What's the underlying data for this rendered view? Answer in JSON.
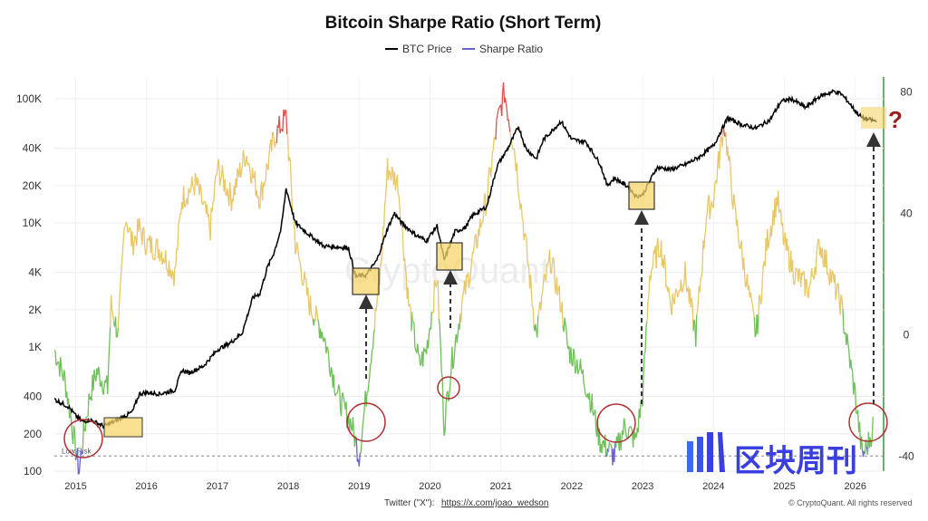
{
  "chart_data": {
    "type": "line",
    "title": "Bitcoin Sharpe Ratio (Short Term)",
    "legend": [
      "BTC Price",
      "Sharpe Ratio"
    ],
    "x_ticks": [
      "2015",
      "2016",
      "2017",
      "2018",
      "2019",
      "2020",
      "2021",
      "2022",
      "2023",
      "2024",
      "2025",
      "2026"
    ],
    "y_left_ticks": [
      "100K",
      "40K",
      "20K",
      "10K",
      "4K",
      "2K",
      "1K",
      "400",
      "200",
      "100"
    ],
    "y_right_ticks": [
      "80",
      "40",
      "0",
      "-40"
    ],
    "y_left_scale": "log",
    "y_left_range": [
      100,
      150000
    ],
    "y_right_range": [
      -45,
      85
    ],
    "reference_label": "Low Risk",
    "reference_value": -40,
    "series": [
      {
        "name": "BTC Price",
        "color": "#000000",
        "points": [
          [
            2014.7,
            380
          ],
          [
            2014.9,
            330
          ],
          [
            2015.0,
            280
          ],
          [
            2015.1,
            250
          ],
          [
            2015.2,
            260
          ],
          [
            2015.4,
            230
          ],
          [
            2015.6,
            260
          ],
          [
            2015.8,
            300
          ],
          [
            2015.9,
            420
          ],
          [
            2016.0,
            430
          ],
          [
            2016.2,
            420
          ],
          [
            2016.4,
            450
          ],
          [
            2016.5,
            650
          ],
          [
            2016.6,
            620
          ],
          [
            2016.8,
            700
          ],
          [
            2017.0,
            950
          ],
          [
            2017.2,
            1100
          ],
          [
            2017.35,
            1300
          ],
          [
            2017.5,
            2500
          ],
          [
            2017.6,
            2700
          ],
          [
            2017.7,
            4300
          ],
          [
            2017.8,
            5800
          ],
          [
            2017.9,
            9000
          ],
          [
            2017.97,
            19000
          ],
          [
            2018.1,
            10000
          ],
          [
            2018.3,
            8000
          ],
          [
            2018.5,
            6500
          ],
          [
            2018.7,
            6400
          ],
          [
            2018.85,
            6300
          ],
          [
            2018.95,
            3700
          ],
          [
            2019.1,
            3800
          ],
          [
            2019.25,
            5000
          ],
          [
            2019.4,
            9000
          ],
          [
            2019.5,
            12000
          ],
          [
            2019.6,
            10000
          ],
          [
            2019.8,
            8000
          ],
          [
            2019.95,
            7200
          ],
          [
            2020.1,
            9500
          ],
          [
            2020.2,
            5000
          ],
          [
            2020.35,
            8500
          ],
          [
            2020.5,
            9200
          ],
          [
            2020.6,
            11500
          ],
          [
            2020.8,
            13500
          ],
          [
            2020.95,
            29000
          ],
          [
            2021.1,
            40000
          ],
          [
            2021.25,
            60000
          ],
          [
            2021.35,
            40000
          ],
          [
            2021.5,
            33000
          ],
          [
            2021.6,
            47000
          ],
          [
            2021.85,
            66000
          ],
          [
            2022.0,
            47000
          ],
          [
            2022.2,
            45000
          ],
          [
            2022.4,
            30000
          ],
          [
            2022.5,
            20000
          ],
          [
            2022.6,
            23000
          ],
          [
            2022.8,
            19500
          ],
          [
            2022.9,
            16500
          ],
          [
            2023.0,
            16800
          ],
          [
            2023.2,
            28000
          ],
          [
            2023.4,
            27000
          ],
          [
            2023.6,
            29500
          ],
          [
            2023.8,
            34000
          ],
          [
            2024.0,
            42000
          ],
          [
            2024.2,
            70000
          ],
          [
            2024.4,
            62000
          ],
          [
            2024.6,
            58000
          ],
          [
            2024.8,
            68000
          ],
          [
            2024.95,
            95000
          ],
          [
            2025.1,
            100000
          ],
          [
            2025.3,
            85000
          ],
          [
            2025.5,
            105000
          ],
          [
            2025.7,
            115000
          ],
          [
            2025.8,
            110000
          ],
          [
            2025.9,
            95000
          ],
          [
            2026.0,
            80000
          ],
          [
            2026.1,
            70000
          ],
          [
            2026.2,
            68000
          ],
          [
            2026.3,
            66000
          ]
        ]
      },
      {
        "name": "Sharpe Ratio",
        "color_high": "#e8c766",
        "color_mid": "#6fbf5a",
        "color_extreme": "#d9534f",
        "color_low": "#6a63d8",
        "points": [
          [
            2014.7,
            -5
          ],
          [
            2014.85,
            -15
          ],
          [
            2014.95,
            -30
          ],
          [
            2015.0,
            -38
          ],
          [
            2015.05,
            -45
          ],
          [
            2015.1,
            -35
          ],
          [
            2015.2,
            -20
          ],
          [
            2015.3,
            -12
          ],
          [
            2015.45,
            -18
          ],
          [
            2015.5,
            10
          ],
          [
            2015.6,
            0
          ],
          [
            2015.7,
            40
          ],
          [
            2015.8,
            30
          ],
          [
            2015.9,
            35
          ],
          [
            2016.0,
            30
          ],
          [
            2016.2,
            28
          ],
          [
            2016.4,
            20
          ],
          [
            2016.5,
            45
          ],
          [
            2016.7,
            50
          ],
          [
            2016.9,
            35
          ],
          [
            2017.0,
            55
          ],
          [
            2017.2,
            45
          ],
          [
            2017.4,
            60
          ],
          [
            2017.6,
            45
          ],
          [
            2017.8,
            65
          ],
          [
            2017.97,
            72
          ],
          [
            2018.1,
            30
          ],
          [
            2018.3,
            10
          ],
          [
            2018.5,
            0
          ],
          [
            2018.7,
            -20
          ],
          [
            2018.9,
            -30
          ],
          [
            2019.0,
            -40
          ],
          [
            2019.1,
            -20
          ],
          [
            2019.3,
            20
          ],
          [
            2019.4,
            55
          ],
          [
            2019.55,
            50
          ],
          [
            2019.7,
            10
          ],
          [
            2019.85,
            -10
          ],
          [
            2019.95,
            -5
          ],
          [
            2020.1,
            20
          ],
          [
            2020.2,
            -30
          ],
          [
            2020.3,
            -10
          ],
          [
            2020.45,
            10
          ],
          [
            2020.6,
            25
          ],
          [
            2020.8,
            45
          ],
          [
            2020.95,
            70
          ],
          [
            2021.05,
            80
          ],
          [
            2021.2,
            60
          ],
          [
            2021.35,
            30
          ],
          [
            2021.5,
            0
          ],
          [
            2021.6,
            15
          ],
          [
            2021.7,
            25
          ],
          [
            2021.85,
            10
          ],
          [
            2021.95,
            -5
          ],
          [
            2022.1,
            -10
          ],
          [
            2022.25,
            -20
          ],
          [
            2022.4,
            -35
          ],
          [
            2022.6,
            -40
          ],
          [
            2022.75,
            -30
          ],
          [
            2022.9,
            -35
          ],
          [
            2023.0,
            -20
          ],
          [
            2023.1,
            20
          ],
          [
            2023.25,
            30
          ],
          [
            2023.4,
            10
          ],
          [
            2023.6,
            20
          ],
          [
            2023.75,
            0
          ],
          [
            2023.9,
            40
          ],
          [
            2024.0,
            45
          ],
          [
            2024.15,
            70
          ],
          [
            2024.3,
            40
          ],
          [
            2024.45,
            20
          ],
          [
            2024.6,
            0
          ],
          [
            2024.75,
            30
          ],
          [
            2024.9,
            45
          ],
          [
            2025.0,
            30
          ],
          [
            2025.15,
            20
          ],
          [
            2025.35,
            15
          ],
          [
            2025.5,
            30
          ],
          [
            2025.65,
            20
          ],
          [
            2025.8,
            10
          ],
          [
            2025.9,
            -5
          ],
          [
            2026.0,
            -20
          ],
          [
            2026.1,
            -40
          ],
          [
            2026.2,
            -35
          ],
          [
            2026.25,
            -30
          ]
        ]
      }
    ],
    "annotations": {
      "question_mark": "?",
      "watermark": "CryptoQuant"
    }
  },
  "footer": {
    "twitter_label": "Twitter (\"X\"):",
    "twitter_link": "https://x.com/joao_wedson",
    "copyright": "© CryptoQuant. All rights reserved"
  },
  "brand": {
    "name": "区块周刊"
  }
}
